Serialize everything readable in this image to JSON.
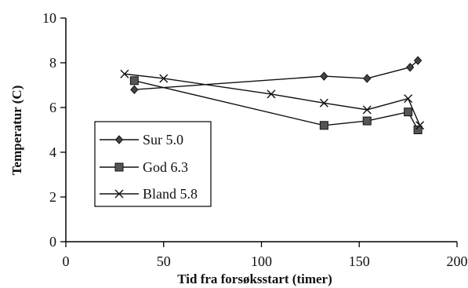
{
  "chart_data": {
    "type": "line",
    "title": "",
    "xlabel": "Tid fra forsøksstart (timer)",
    "ylabel": "Temperatur (C)",
    "xlim": [
      0,
      200
    ],
    "ylim": [
      0,
      10
    ],
    "x_ticks": [
      0,
      50,
      100,
      150,
      200
    ],
    "y_ticks": [
      0,
      2,
      4,
      6,
      8,
      10
    ],
    "grid": false,
    "legend_position": "left",
    "series": [
      {
        "name": "Sur 5.0",
        "marker": "diamond",
        "x": [
          35,
          132,
          154,
          176,
          180
        ],
        "values": [
          6.8,
          7.4,
          7.3,
          7.8,
          8.1
        ]
      },
      {
        "name": "God 6.3",
        "marker": "square",
        "x": [
          35,
          132,
          154,
          175,
          180
        ],
        "values": [
          7.2,
          5.2,
          5.4,
          5.8,
          5.0
        ]
      },
      {
        "name": "Bland 5.8",
        "marker": "x",
        "x": [
          30,
          50,
          105,
          132,
          154,
          175,
          181
        ],
        "values": [
          7.5,
          7.3,
          6.6,
          6.2,
          5.9,
          6.4,
          5.2
        ]
      }
    ]
  }
}
